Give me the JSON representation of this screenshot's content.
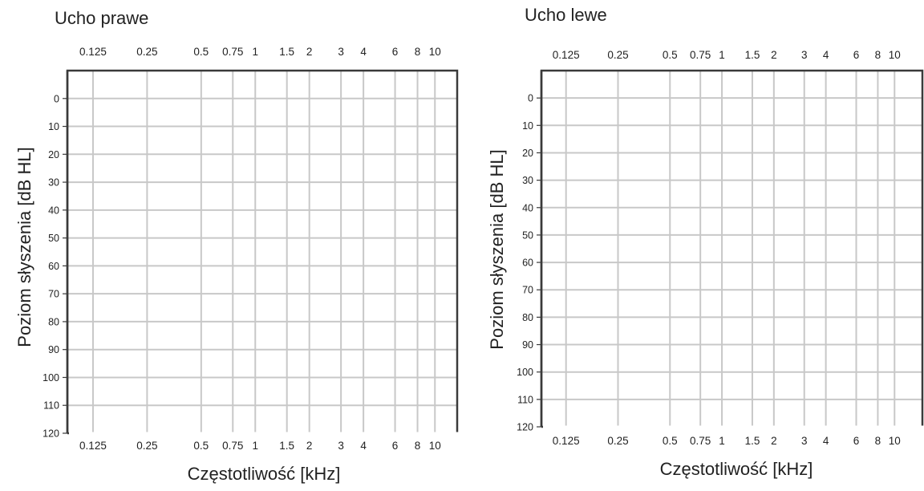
{
  "chart_data": [
    {
      "type": "line",
      "title": "Ucho prawe",
      "xlabel": "Częstotliwość [kHz]",
      "ylabel": "Poziom słyszenia [dB HL]",
      "x_ticks": [
        "0.125",
        "0.25",
        "0.5",
        "0.75",
        "1",
        "1.5",
        "2",
        "3",
        "4",
        "6",
        "8",
        "10"
      ],
      "x_tick_values": [
        0.125,
        0.25,
        0.5,
        0.75,
        1,
        1.5,
        2,
        3,
        4,
        6,
        8,
        10
      ],
      "x_scale": "log",
      "y_ticks": [
        "0",
        "10",
        "20",
        "30",
        "40",
        "50",
        "60",
        "70",
        "80",
        "90",
        "100",
        "110",
        "120"
      ],
      "y_tick_values": [
        0,
        10,
        20,
        30,
        40,
        50,
        60,
        70,
        80,
        90,
        100,
        110,
        120
      ],
      "y_inverted": true,
      "grid": true,
      "series": []
    },
    {
      "type": "line",
      "title": "Ucho lewe",
      "xlabel": "Częstotliwość [kHz]",
      "ylabel": "Poziom słyszenia [dB HL]",
      "x_ticks": [
        "0.125",
        "0.25",
        "0.5",
        "0.75",
        "1",
        "1.5",
        "2",
        "3",
        "4",
        "6",
        "8",
        "10"
      ],
      "x_tick_values": [
        0.125,
        0.25,
        0.5,
        0.75,
        1,
        1.5,
        2,
        3,
        4,
        6,
        8,
        10
      ],
      "x_scale": "log",
      "y_ticks": [
        "0",
        "10",
        "20",
        "30",
        "40",
        "50",
        "60",
        "70",
        "80",
        "90",
        "100",
        "110",
        "120"
      ],
      "y_tick_values": [
        0,
        10,
        20,
        30,
        40,
        50,
        60,
        70,
        80,
        90,
        100,
        110,
        120
      ],
      "y_inverted": true,
      "grid": true,
      "series": []
    }
  ]
}
